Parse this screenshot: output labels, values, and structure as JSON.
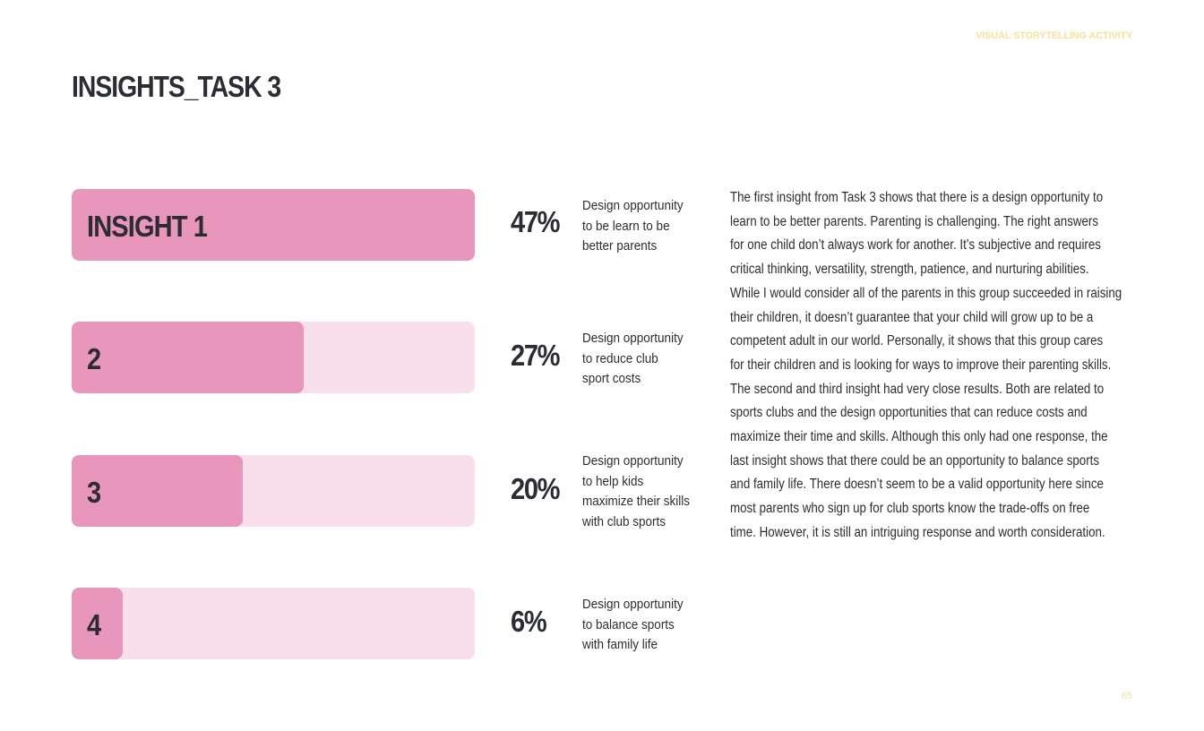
{
  "header": {
    "tag": "VISUAL STORYTELLING ACTIVITY",
    "title": "INSIGHTS_TASK 3"
  },
  "colors": {
    "bar_fill": "#e996bc",
    "bar_track": "#f8dfeb",
    "text": "#2a2d33",
    "accent_yellow": "#f6e39a"
  },
  "insights": [
    {
      "label": "INSIGHT 1",
      "value": 47,
      "percent_text": "47%",
      "description_lines": [
        "Design opportunity",
        "to be learn to be",
        "better parents"
      ]
    },
    {
      "label": "2",
      "value": 27,
      "percent_text": "27%",
      "description_lines": [
        "Design opportunity",
        "to reduce club",
        "sport costs"
      ]
    },
    {
      "label": "3",
      "value": 20,
      "percent_text": "20%",
      "description_lines": [
        "Design opportunity",
        "to help kids",
        "maximize their skills",
        "with club sports"
      ]
    },
    {
      "label": "4",
      "value": 6,
      "percent_text": "6%",
      "description_lines": [
        "Design opportunity",
        "to balance sports",
        "with family life"
      ]
    }
  ],
  "paragraph_lines": [
    "The first insight from Task 3 shows that there is a design opportunity to",
    "learn to be better parents. Parenting is challenging. The right answers",
    "for one child don’t always work for another. It’s subjective and requires",
    "critical thinking, versatility, strength, patience, and nurturing abilities.",
    "While I would consider all of the parents in this group succeeded in raising",
    "their children, it doesn’t guarantee that your child will grow up to be a",
    "competent adult in our world. Personally, it shows that this group cares",
    "for their children and is looking for ways to improve their parenting skills.",
    "The second and third insight had very close results. Both are related to",
    "sports clubs and the design opportunities that can reduce costs and",
    "maximize their time and skills. Although this only had one response, the",
    "last insight shows that there could be an opportunity to balance sports",
    "and family life. There doesn’t seem to be a valid opportunity here since",
    "most parents who sign up for club sports know the trade-offs on free",
    "time.  However, it is still an intriguing response and worth consideration."
  ],
  "page_number": "65"
}
